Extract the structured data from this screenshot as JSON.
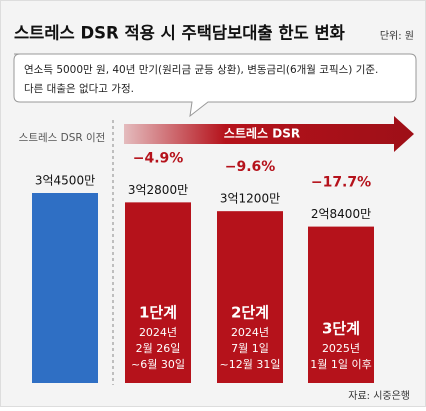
{
  "chart_data": {
    "type": "bar",
    "title": "스트레스 DSR 적용 시 주택담보대출 한도 변화",
    "unit": "단위: 원",
    "note": [
      "연소득 5000만 원, 40년 만기(원리금 균등 상환), 변동금리(6개월 코픽스) 기준.",
      "다른 대출은 없다고 가정."
    ],
    "before_label": "스트레스 DSR 이전",
    "arrow_label": "스트레스 DSR",
    "categories": [
      null,
      "1단계",
      "2단계",
      "3단계"
    ],
    "periods": [
      null,
      [
        "2024년",
        "2월 26일",
        "~6월 30일"
      ],
      [
        "2024년",
        "7월 1일",
        "~12월 31일"
      ],
      [
        "2025년",
        "1월 1일 이후"
      ]
    ],
    "values": [
      345000000,
      328000000,
      312000000,
      284000000
    ],
    "value_labels": [
      "3억4500만",
      "3억2800만",
      "3억1200만",
      "2억8400만"
    ],
    "colors": [
      "#2f6fc4",
      "#b5121b",
      "#b5121b",
      "#b5121b"
    ],
    "changes": [
      null,
      {
        "value": -4.9,
        "label": "−4.9%"
      },
      {
        "value": -9.6,
        "label": "−9.6%"
      },
      {
        "value": -17.7,
        "label": "−17.7%"
      }
    ],
    "source": "자료: 시중은행"
  }
}
